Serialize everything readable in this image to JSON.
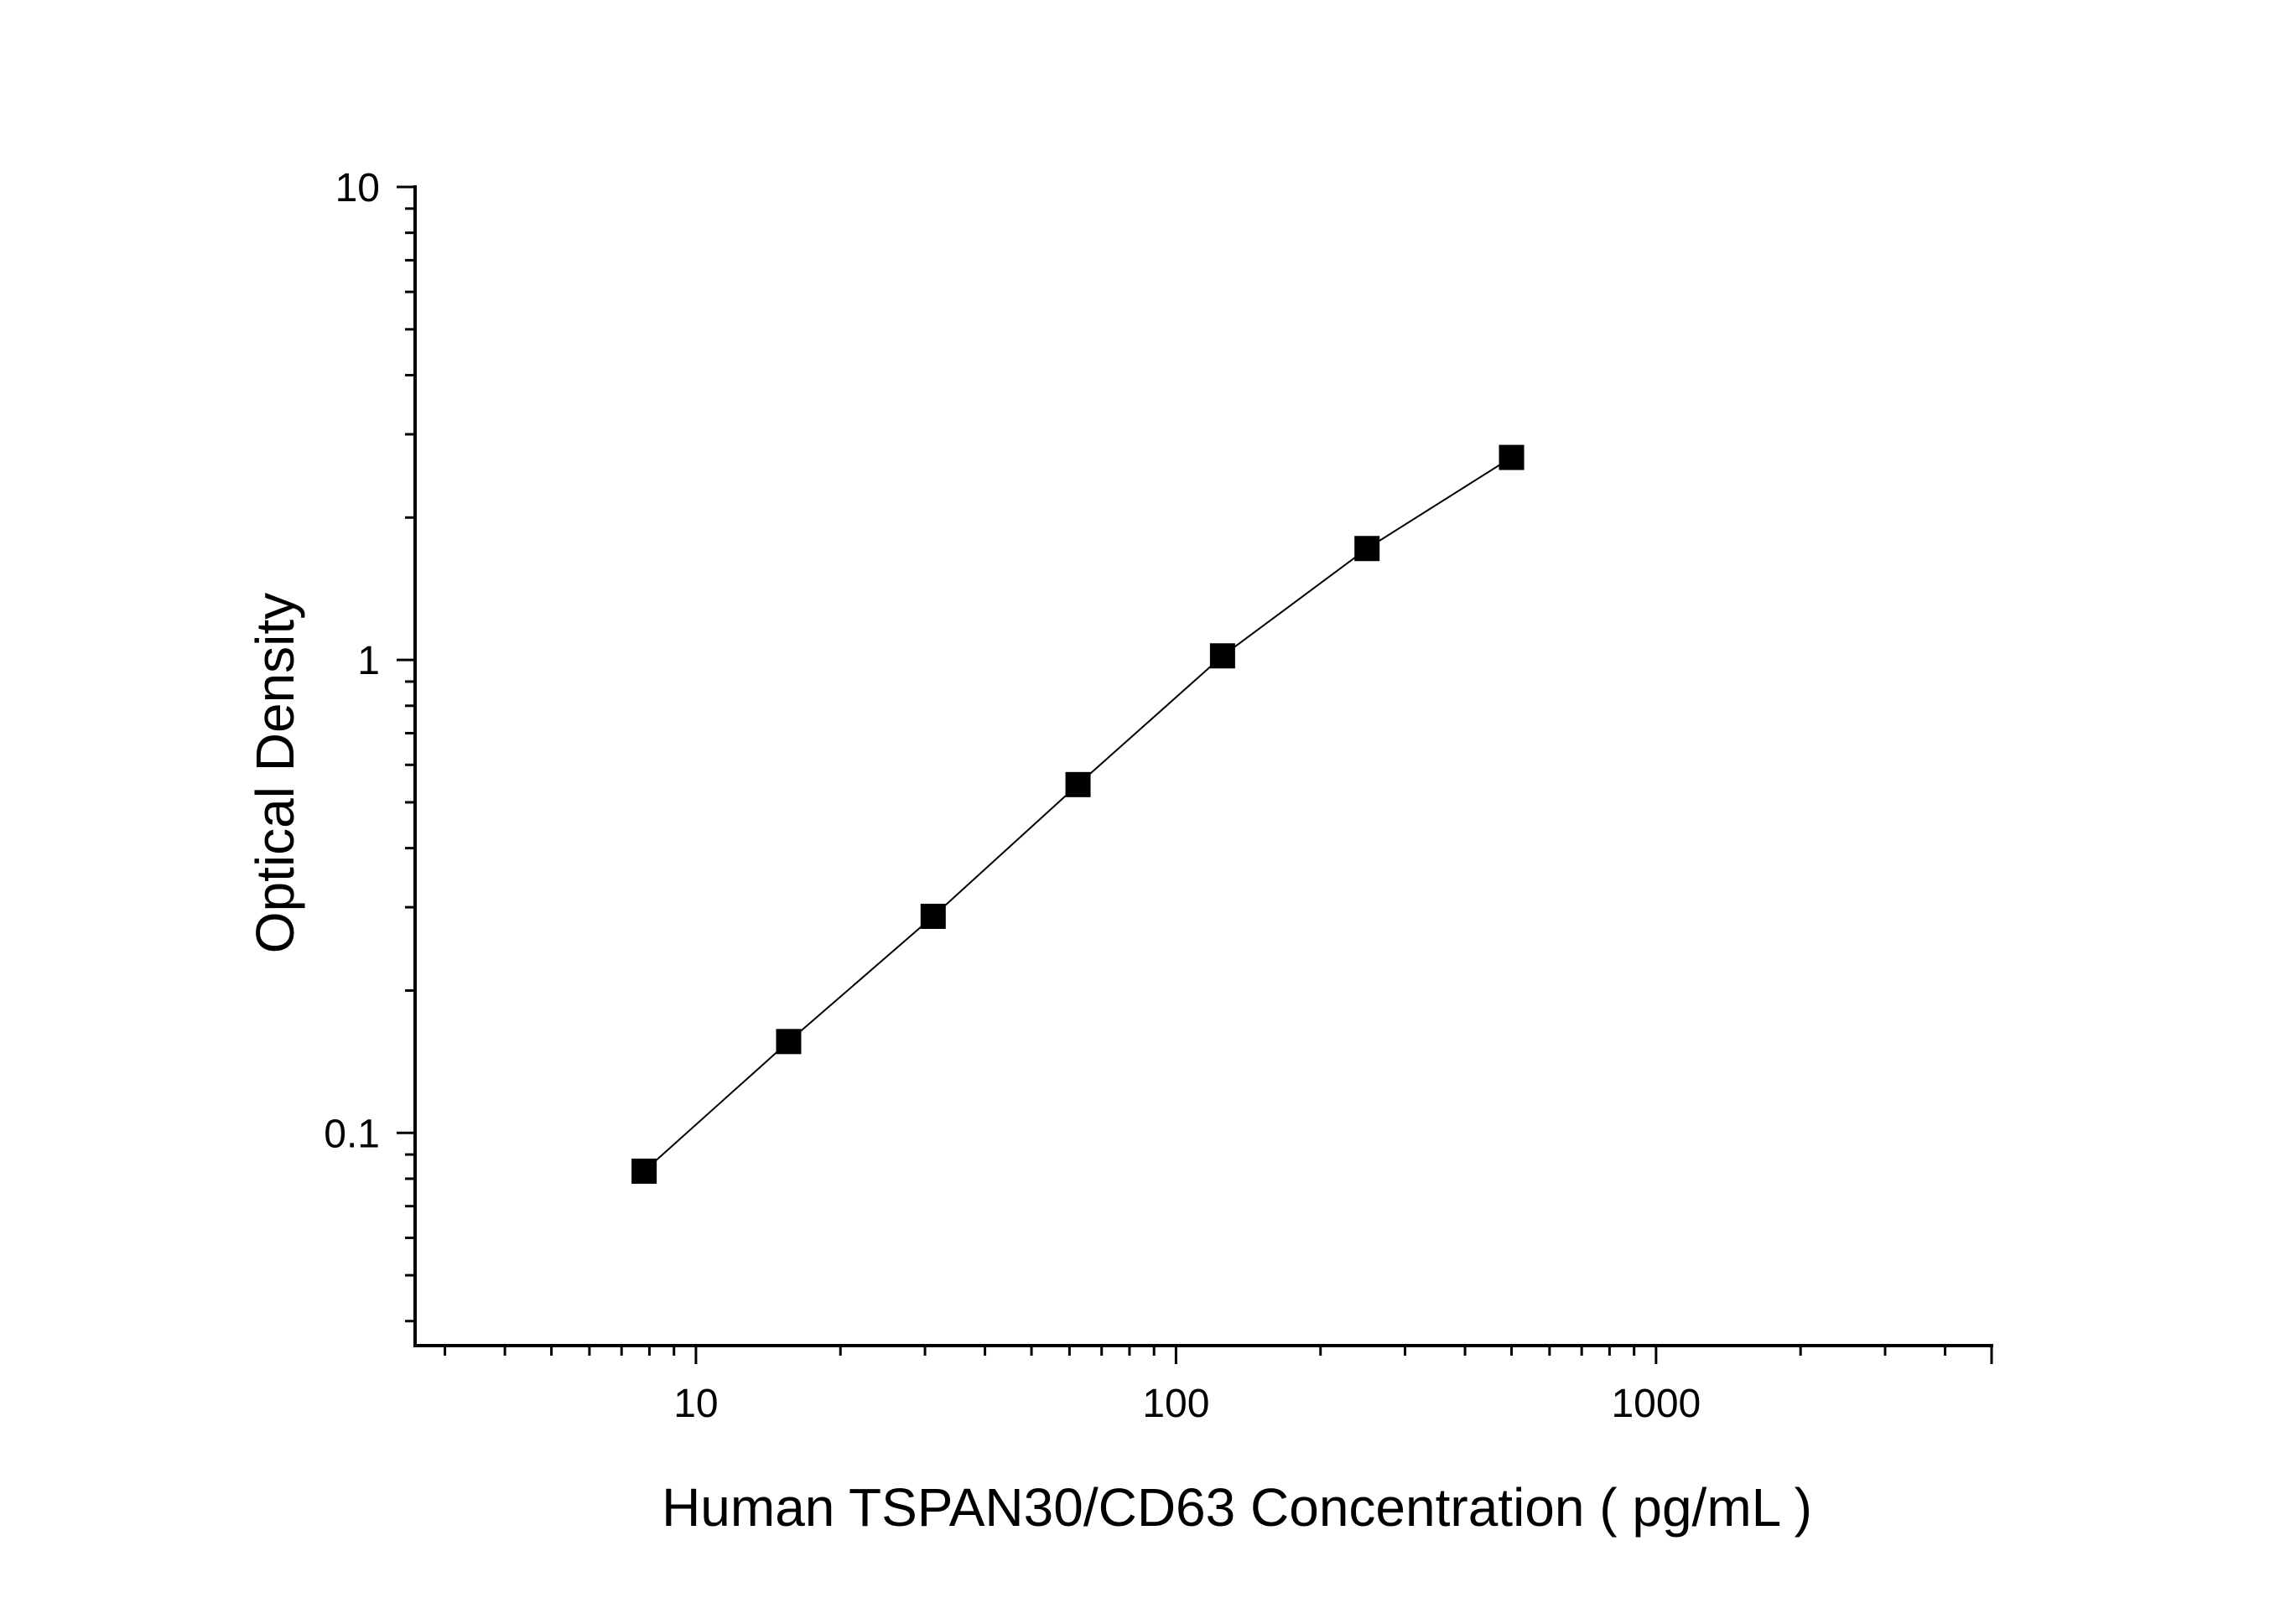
{
  "chart_data": {
    "type": "line",
    "title": "",
    "xlabel": "Human TSPAN30/CD63 Concentration ( pg/mL )",
    "ylabel": "Optical Density",
    "x_scale": "log",
    "y_scale": "log",
    "xlim": [
      2.6,
      5000
    ],
    "ylim": [
      0.0355,
      10
    ],
    "x_ticks": [
      10,
      100,
      1000
    ],
    "x_tick_labels": [
      "10",
      "100",
      "1000"
    ],
    "y_ticks": [
      0.1,
      1,
      10
    ],
    "y_tick_labels": [
      "0.1",
      "1",
      "10"
    ],
    "grid": false,
    "legend": "none",
    "marker": "square",
    "series": [
      {
        "x": [
          7.8,
          15.6,
          31.2,
          62.5,
          125,
          250,
          500
        ],
        "y": [
          0.083,
          0.156,
          0.287,
          0.545,
          1.02,
          1.72,
          2.68
        ]
      }
    ],
    "colors": {
      "line": "#000000",
      "marker": "#000000",
      "axis": "#000000"
    }
  }
}
